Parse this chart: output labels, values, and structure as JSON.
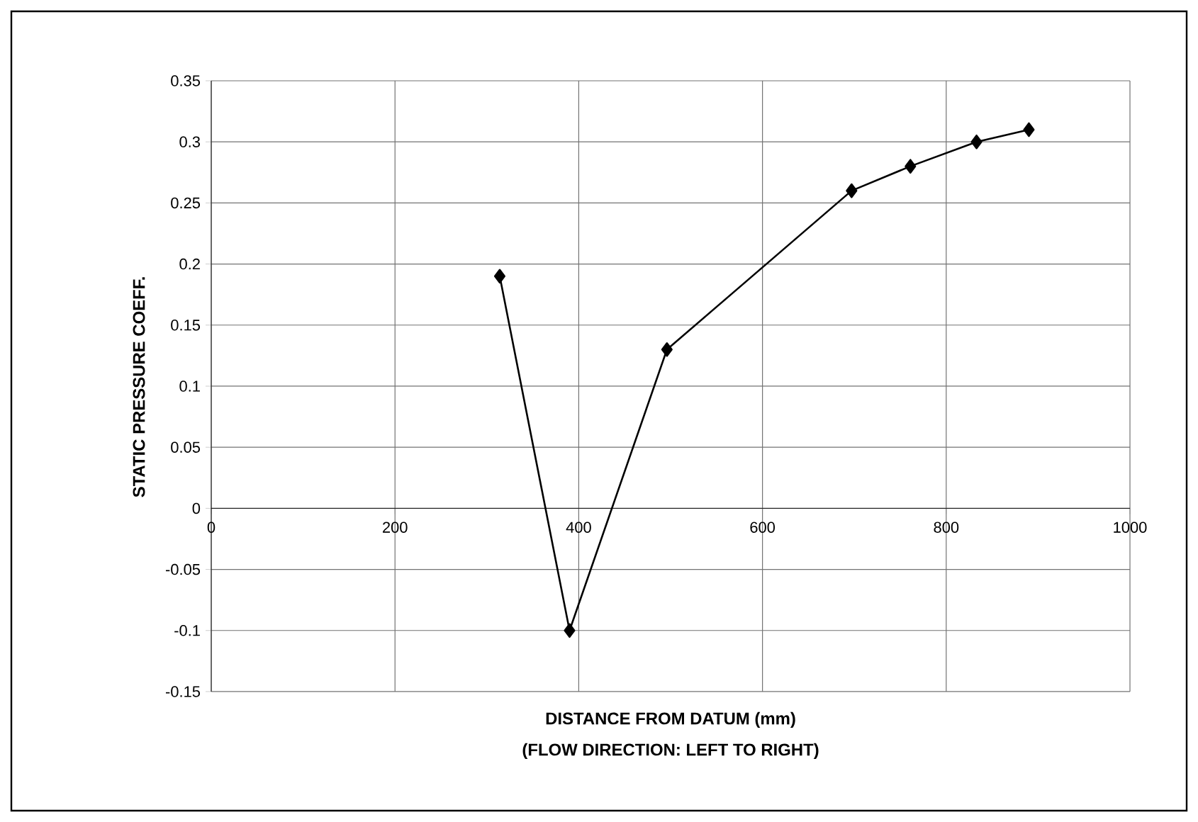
{
  "chart_data": {
    "type": "line",
    "xlabel": "DISTANCE FROM DATUM (mm)",
    "ylabel": "STATIC PRESSURE COEFF.",
    "annotations": [
      "(FLOW DIRECTION: LEFT TO RIGHT)"
    ],
    "series": [
      {
        "color": "#000000",
        "x": [
          314,
          390,
          496,
          697,
          761,
          833,
          890
        ],
        "values": [
          0.19,
          -0.1,
          0.13,
          0.26,
          0.28,
          0.3,
          0.31
        ]
      }
    ],
    "xlim": [
      0,
      1000
    ],
    "xticks": [
      0,
      200,
      400,
      600,
      800,
      1000
    ],
    "ylim": [
      -0.15,
      0.35
    ],
    "yticks": [
      -0.15,
      -0.1,
      -0.05,
      0,
      0.05,
      0.1,
      0.15,
      0.2,
      0.25,
      0.3,
      0.35
    ],
    "grid": true,
    "marker": "diamond",
    "line_style": "solid"
  }
}
